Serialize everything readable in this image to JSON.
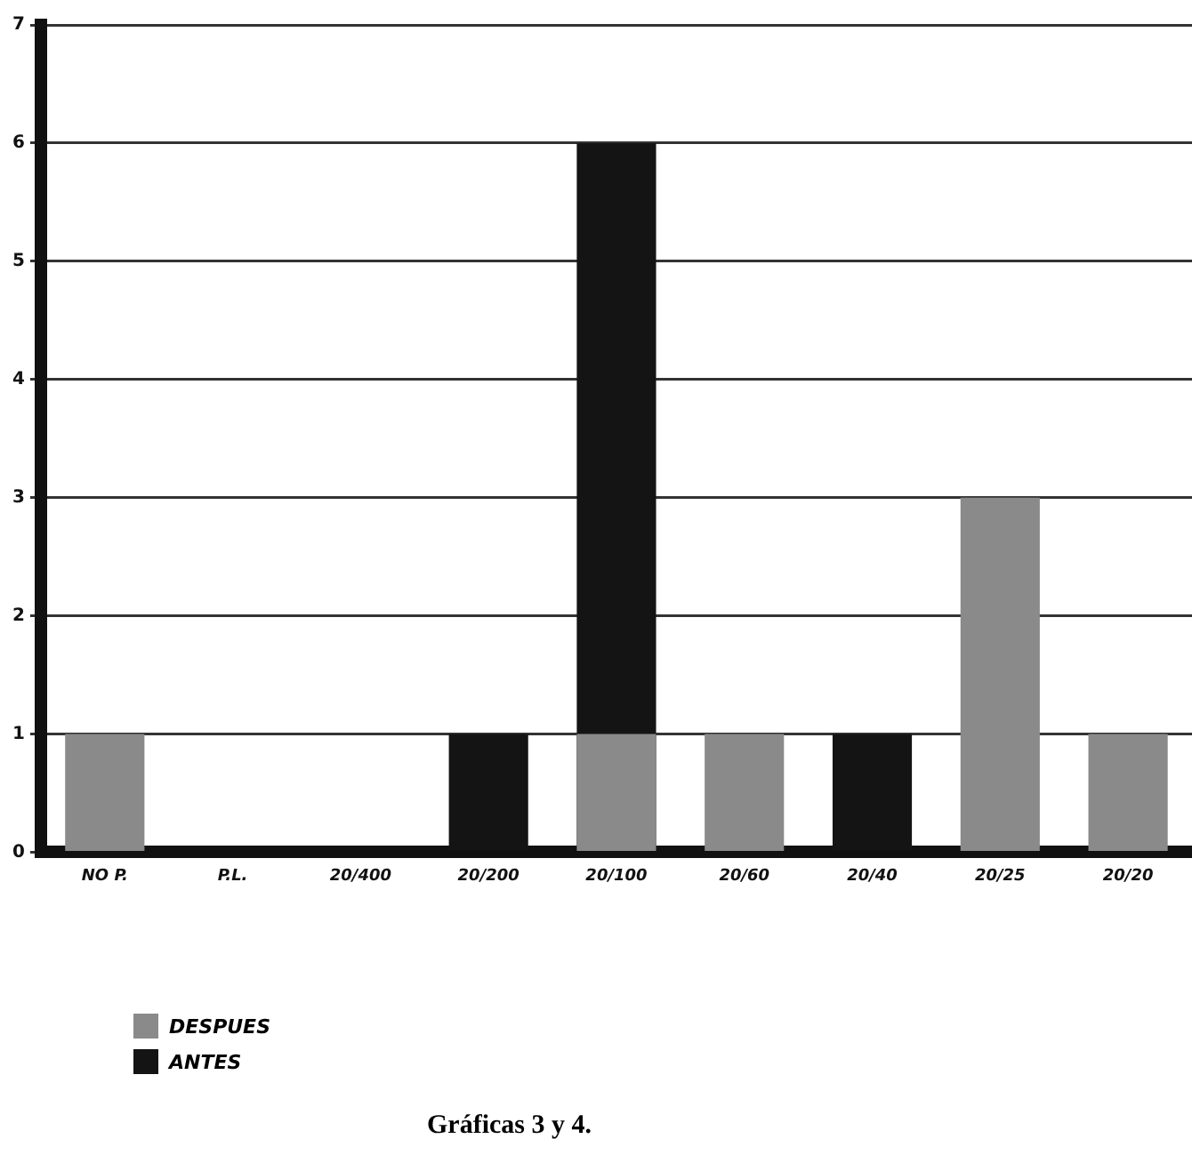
{
  "chart_data": {
    "type": "bar",
    "categories": [
      "NO P.",
      "P.L.",
      "20/400",
      "20/200",
      "20/100",
      "20/60",
      "20/40",
      "20/25",
      "20/20"
    ],
    "series": [
      {
        "name": "DESPUES",
        "color": "#8a8a8a",
        "values": [
          1,
          0,
          0,
          0,
          1,
          1,
          0,
          3,
          1
        ]
      },
      {
        "name": "ANTES",
        "color": "#141414",
        "values": [
          0,
          0,
          0,
          1,
          6,
          0,
          1,
          0,
          0
        ]
      }
    ],
    "ylim": [
      0,
      7
    ],
    "yticks": [
      0,
      1,
      2,
      3,
      4,
      5,
      6,
      7
    ],
    "grid": "y",
    "legend": "bottom left",
    "annotations": [
      "Gráficas 3 y 4."
    ]
  }
}
